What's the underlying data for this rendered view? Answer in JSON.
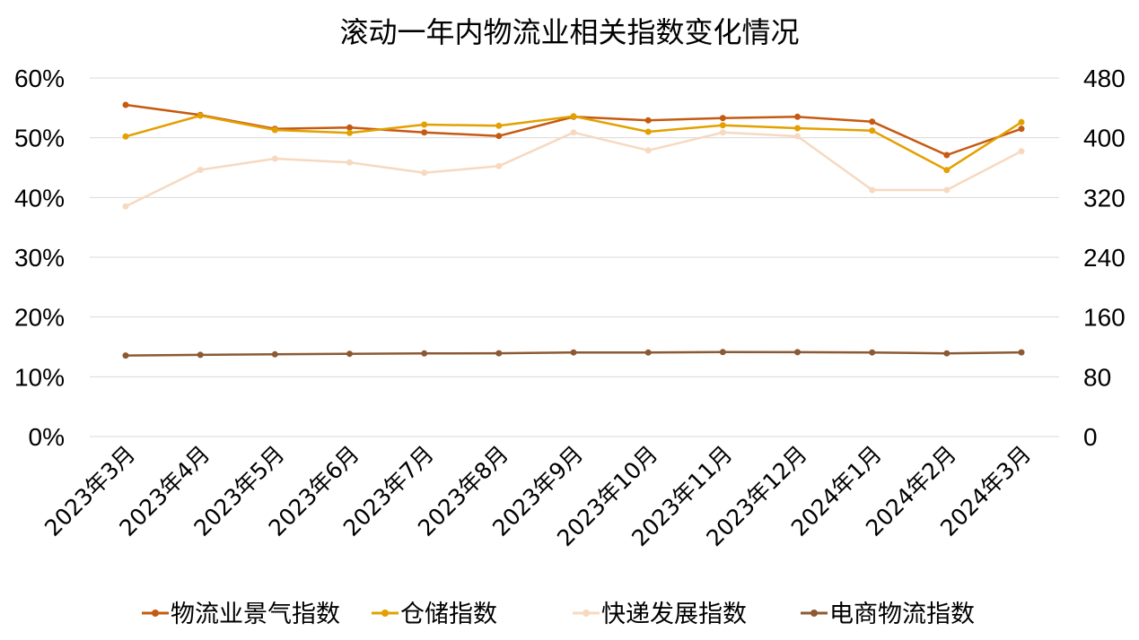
{
  "chart_data": {
    "type": "line",
    "title": "滚动一年内物流业相关指数变化情况",
    "categories": [
      "2023年3月",
      "2023年4月",
      "2023年5月",
      "2023年6月",
      "2023年7月",
      "2023年8月",
      "2023年9月",
      "2023年10月",
      "2023年11月",
      "2023年12月",
      "2024年1月",
      "2024年2月",
      "2024年3月"
    ],
    "y_left": {
      "ticks": [
        "0%",
        "10%",
        "20%",
        "30%",
        "40%",
        "50%",
        "60%"
      ],
      "range": [
        0,
        60
      ],
      "unit": "%"
    },
    "y_right": {
      "ticks": [
        "0",
        "80",
        "160",
        "240",
        "320",
        "400",
        "480"
      ],
      "range": [
        0,
        480
      ]
    },
    "grid": true,
    "legend_position": "bottom",
    "series": [
      {
        "name": "物流业景气指数",
        "axis": "left",
        "color": "#c55a11",
        "values": [
          55.5,
          53.8,
          51.5,
          51.7,
          50.9,
          50.3,
          53.5,
          52.9,
          53.3,
          53.5,
          52.7,
          47.1,
          51.5
        ]
      },
      {
        "name": "仓储指数",
        "axis": "left",
        "color": "#e3a000",
        "values": [
          50.2,
          53.7,
          51.3,
          50.8,
          52.2,
          52.0,
          53.6,
          51.0,
          52.1,
          51.6,
          51.2,
          44.6,
          52.6
        ]
      },
      {
        "name": "快递发展指数",
        "axis": "right",
        "color": "#f6d9c0",
        "values": [
          308,
          357,
          372,
          367,
          353,
          362,
          407,
          383,
          407,
          402,
          330,
          330,
          382
        ]
      },
      {
        "name": "电商物流指数",
        "axis": "right",
        "color": "#8b5a34",
        "values": [
          108.5,
          109.3,
          110.0,
          110.8,
          111.3,
          111.5,
          112.6,
          112.5,
          113.1,
          112.9,
          112.6,
          111.4,
          112.7
        ]
      }
    ]
  }
}
